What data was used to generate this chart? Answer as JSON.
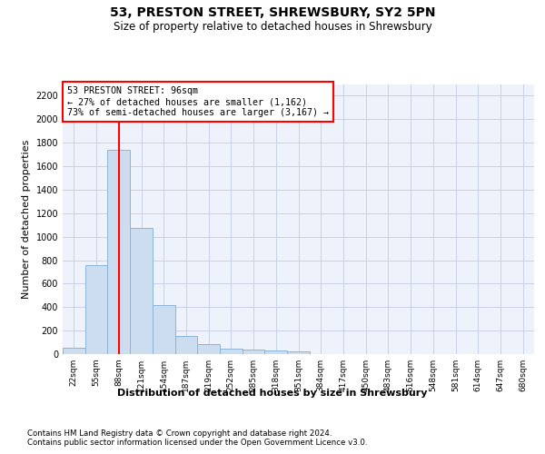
{
  "title1": "53, PRESTON STREET, SHREWSBURY, SY2 5PN",
  "title2": "Size of property relative to detached houses in Shrewsbury",
  "xlabel": "Distribution of detached houses by size in Shrewsbury",
  "ylabel": "Number of detached properties",
  "bar_color": "#ccddf0",
  "bar_edge_color": "#8ab4d8",
  "categories": [
    "22sqm",
    "55sqm",
    "88sqm",
    "121sqm",
    "154sqm",
    "187sqm",
    "219sqm",
    "252sqm",
    "285sqm",
    "318sqm",
    "351sqm",
    "384sqm",
    "417sqm",
    "450sqm",
    "483sqm",
    "516sqm",
    "548sqm",
    "581sqm",
    "614sqm",
    "647sqm",
    "680sqm"
  ],
  "values": [
    55,
    760,
    1740,
    1075,
    420,
    158,
    82,
    48,
    42,
    30,
    20,
    0,
    0,
    0,
    0,
    0,
    0,
    0,
    0,
    0,
    0
  ],
  "ylim": [
    0,
    2300
  ],
  "yticks": [
    0,
    200,
    400,
    600,
    800,
    1000,
    1200,
    1400,
    1600,
    1800,
    2000,
    2200
  ],
  "vline_x": 2,
  "annotation_line1": "53 PRESTON STREET: 96sqm",
  "annotation_line2": "← 27% of detached houses are smaller (1,162)",
  "annotation_line3": "73% of semi-detached houses are larger (3,167) →",
  "annotation_box_color": "white",
  "annotation_box_edge": "red",
  "vline_color": "red",
  "footer1": "Contains HM Land Registry data © Crown copyright and database right 2024.",
  "footer2": "Contains public sector information licensed under the Open Government Licence v3.0.",
  "bg_color": "#eef2fb",
  "grid_color": "#c8cfe8"
}
